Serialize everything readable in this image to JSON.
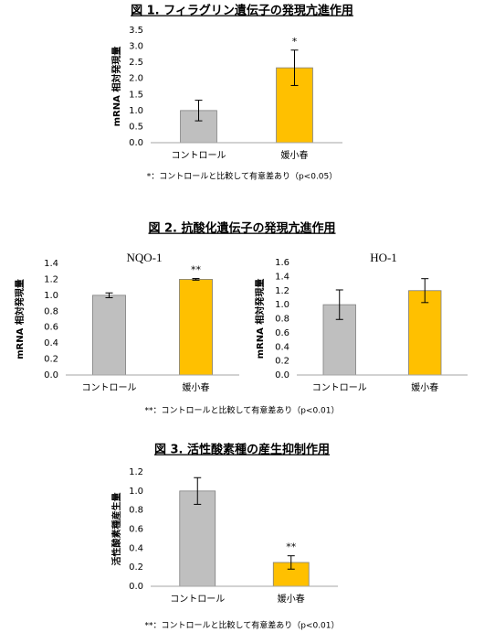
{
  "chart_data": [
    {
      "type": "bar",
      "title": "図 1. フィラグリン遺伝子の発現亢進作用",
      "ylabel": "mRNA 相対発現量",
      "categories": [
        "コントロール",
        "媛小春"
      ],
      "values": [
        1.0,
        2.33
      ],
      "errors": [
        0.32,
        0.55
      ],
      "colors": [
        "#bfbfbf",
        "#ffc000"
      ],
      "annotations": [
        null,
        "*"
      ],
      "ylim": [
        0,
        3.5
      ],
      "yticks": [
        {
          "value": 0,
          "label": "0.0"
        },
        {
          "value": 0.5,
          "label": "0.5"
        },
        {
          "value": 1,
          "label": "1.0"
        },
        {
          "value": 1.5,
          "label": "1.5"
        },
        {
          "value": 2,
          "label": "2.0"
        },
        {
          "value": 2.5,
          "label": "2.5"
        },
        {
          "value": 3,
          "label": "3.0"
        },
        {
          "value": 3.5,
          "label": "3.5"
        }
      ],
      "note": "*：コントロールと比較して有意差あり（p<0.05）"
    },
    {
      "type": "bar",
      "title": "図 2. 抗酸化遺伝子の発現亢進作用",
      "subtitle": "NQO-1",
      "ylabel": "mRNA 相対発現量",
      "categories": [
        "コントロール",
        "媛小春"
      ],
      "values": [
        1.0,
        1.2
      ],
      "errors": [
        0.03,
        0.01
      ],
      "colors": [
        "#bfbfbf",
        "#ffc000"
      ],
      "annotations": [
        null,
        "**"
      ],
      "ylim": [
        0,
        1.4
      ],
      "yticks": [
        {
          "value": 0,
          "label": "0.0"
        },
        {
          "value": 0.2,
          "label": "0.2"
        },
        {
          "value": 0.4,
          "label": "0.4"
        },
        {
          "value": 0.6,
          "label": "0.6"
        },
        {
          "value": 0.8,
          "label": "0.8"
        },
        {
          "value": 1,
          "label": "1.0"
        },
        {
          "value": 1.2,
          "label": "1.2"
        },
        {
          "value": 1.4,
          "label": "1.4"
        }
      ],
      "note": "**：コントロールと比較して有意差あり（p<0.01）"
    },
    {
      "type": "bar",
      "subtitle": "HO-1",
      "ylabel": "mRNA 相対発現量",
      "categories": [
        "コントロール",
        "媛小春"
      ],
      "values": [
        1.0,
        1.2
      ],
      "errors": [
        0.21,
        0.17
      ],
      "colors": [
        "#bfbfbf",
        "#ffc000"
      ],
      "ylim": [
        0,
        1.6
      ],
      "yticks": [
        {
          "value": 0,
          "label": "0.0"
        },
        {
          "value": 0.2,
          "label": "0.2"
        },
        {
          "value": 0.4,
          "label": "0.4"
        },
        {
          "value": 0.6,
          "label": "0.6"
        },
        {
          "value": 0.8,
          "label": "0.8"
        },
        {
          "value": 1,
          "label": "1.0"
        },
        {
          "value": 1.2,
          "label": "1.2"
        },
        {
          "value": 1.4,
          "label": "1.4"
        },
        {
          "value": 1.6,
          "label": "1.6"
        }
      ]
    },
    {
      "type": "bar",
      "title": "図 3. 活性酸素種の産生抑制作用",
      "ylabel": "活性酸素種産生量",
      "categories": [
        "コントロール",
        "媛小春"
      ],
      "values": [
        1.0,
        0.25
      ],
      "errors": [
        0.14,
        0.07
      ],
      "colors": [
        "#bfbfbf",
        "#ffc000"
      ],
      "annotations": [
        null,
        "**"
      ],
      "ylim": [
        0,
        1.2
      ],
      "yticks": [
        {
          "value": 0,
          "label": "0.0"
        },
        {
          "value": 0.2,
          "label": "0.2"
        },
        {
          "value": 0.4,
          "label": "0.4"
        },
        {
          "value": 0.6,
          "label": "0.6"
        },
        {
          "value": 0.8,
          "label": "0.8"
        },
        {
          "value": 1,
          "label": "1.0"
        },
        {
          "value": 1.2,
          "label": "1.2"
        }
      ],
      "note": "**：コントロールと比較して有意差あり（p<0.01）"
    }
  ]
}
